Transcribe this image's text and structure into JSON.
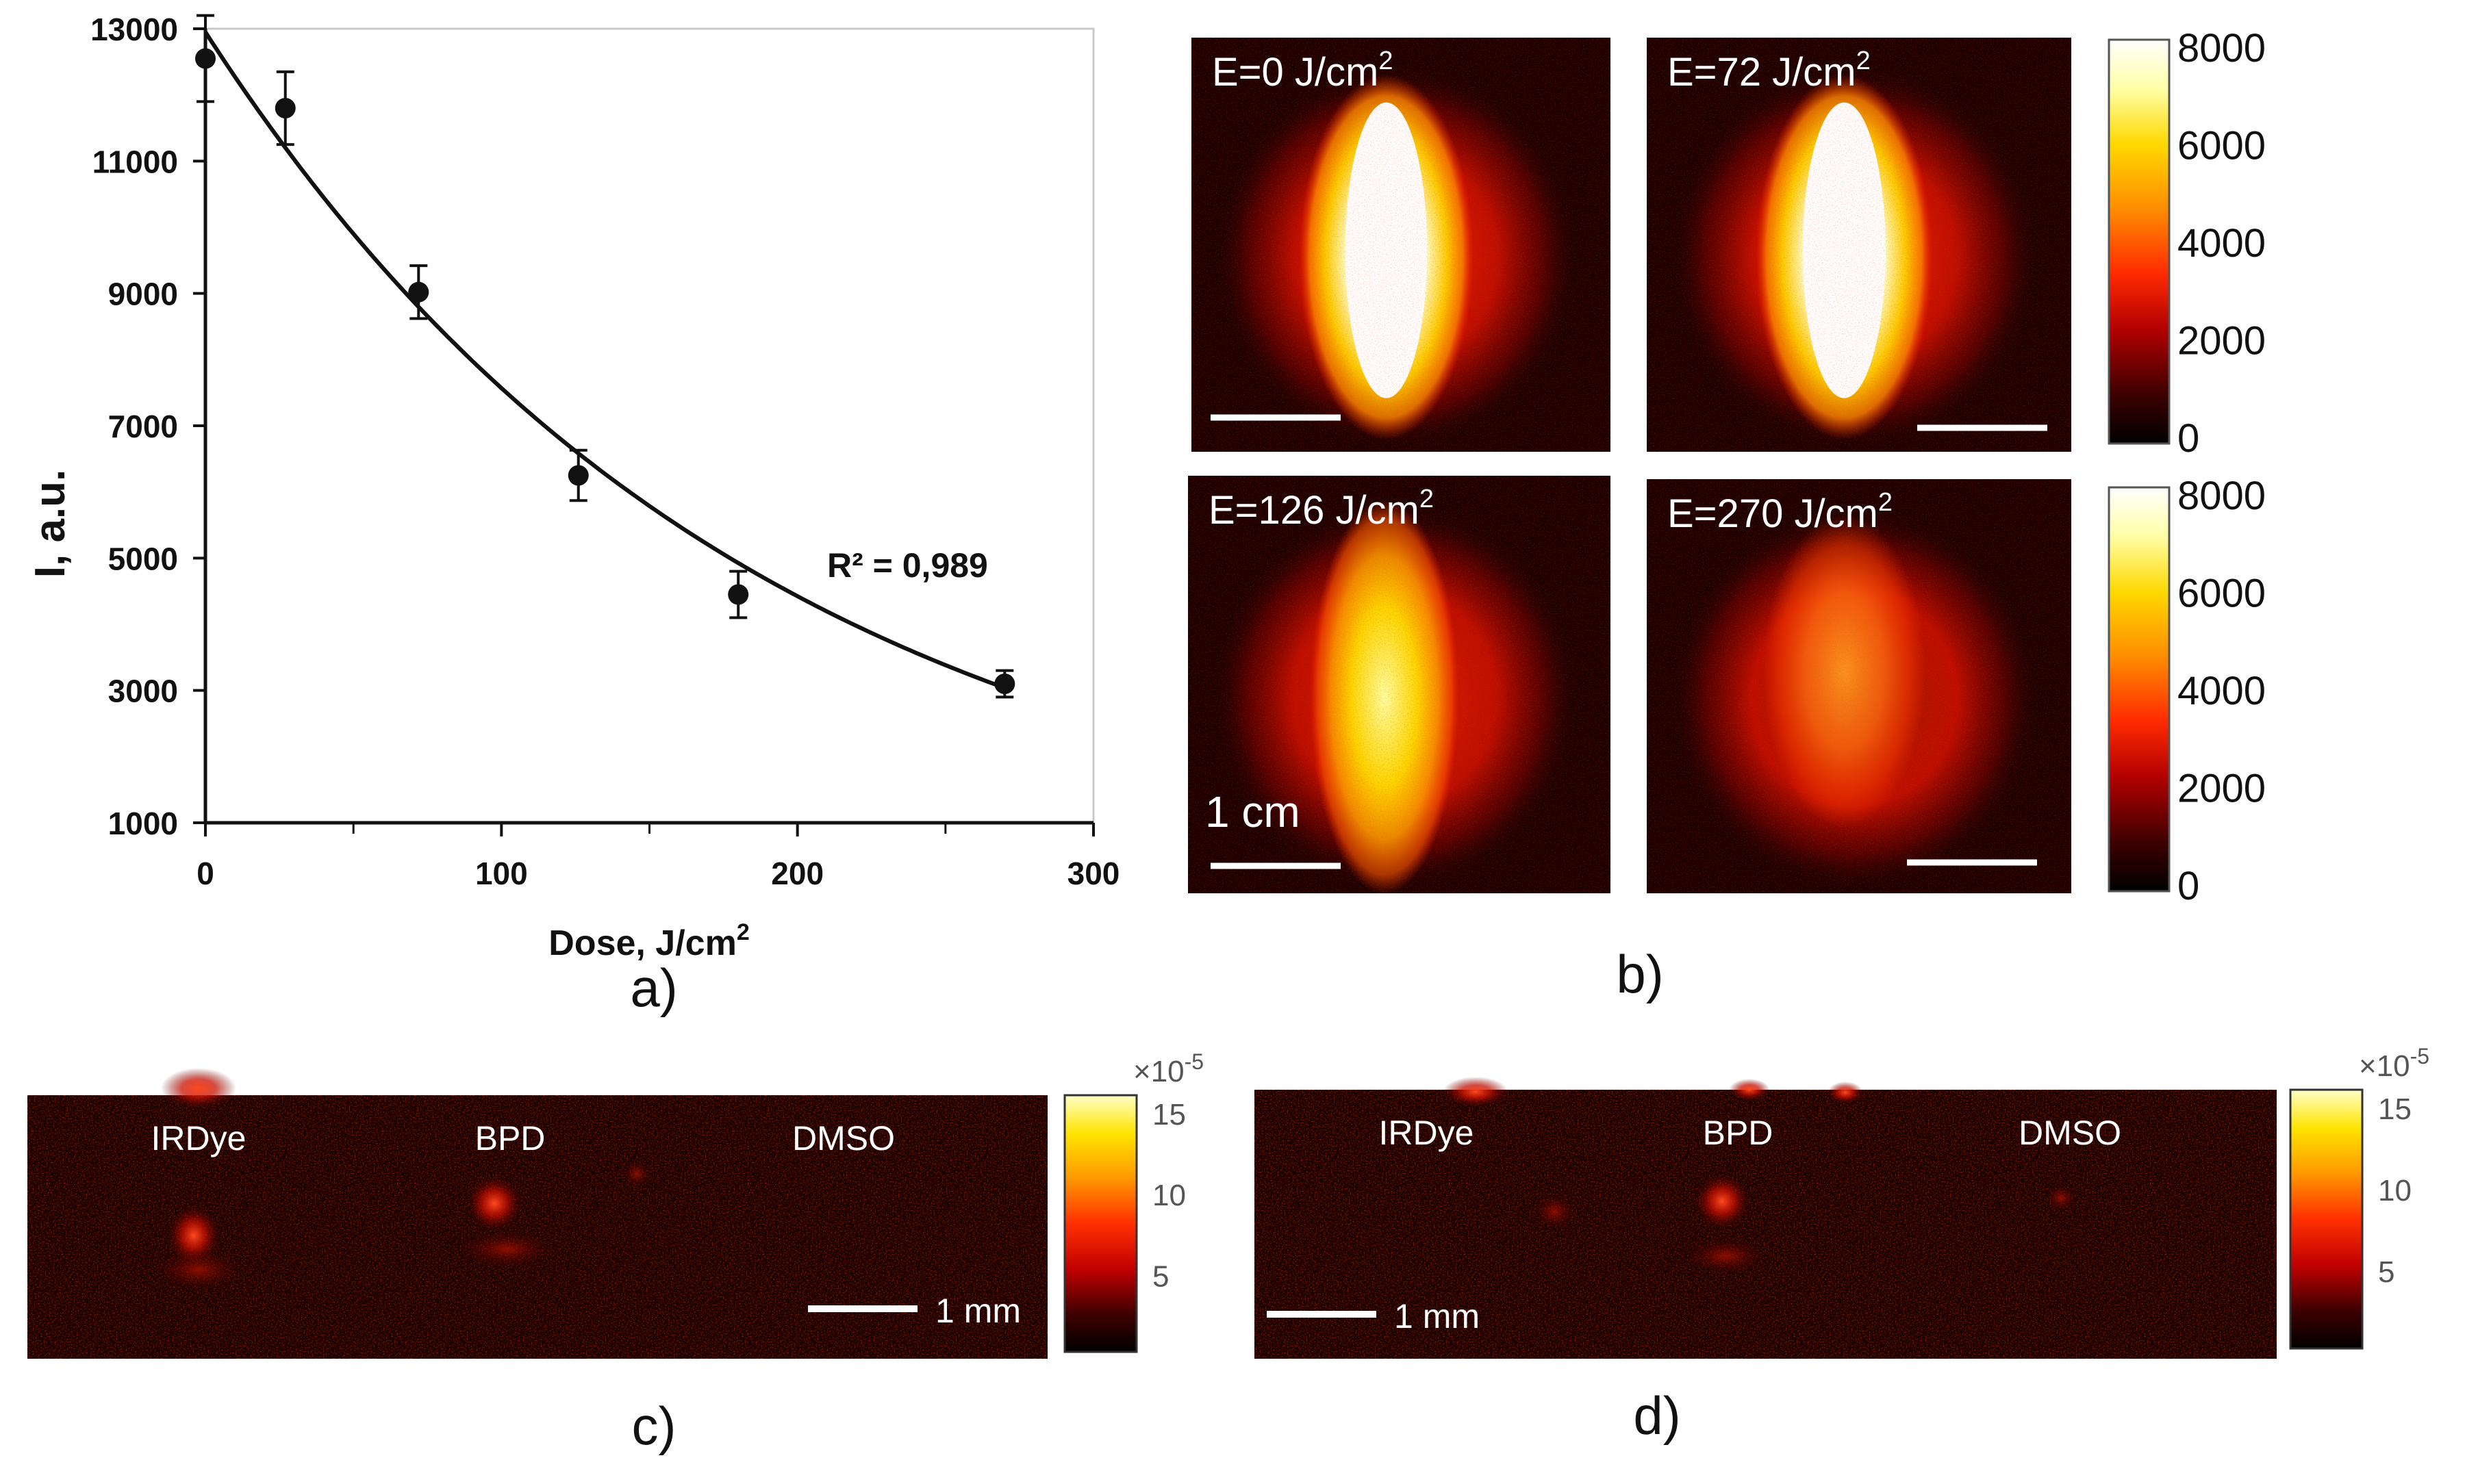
{
  "chart_data": [
    {
      "panel": "a)",
      "type": "scatter",
      "xlabel_main": "Dose, J/cm",
      "xlabel_sup": "2",
      "ylabel": "I, a.u.",
      "xlim": [
        0,
        300
      ],
      "ylim": [
        1000,
        13000
      ],
      "xticks": [
        0,
        100,
        200,
        300
      ],
      "yticks": [
        1000,
        3000,
        5000,
        7000,
        9000,
        11000,
        13000
      ],
      "points": [
        {
          "x": 0,
          "y": 12550,
          "err": 650
        },
        {
          "x": 27,
          "y": 11800,
          "err": 550
        },
        {
          "x": 72,
          "y": 9020,
          "err": 400
        },
        {
          "x": 126,
          "y": 6250,
          "err": 380
        },
        {
          "x": 180,
          "y": 4450,
          "err": 350
        },
        {
          "x": 270,
          "y": 3100,
          "err": 200
        }
      ],
      "trendline": {
        "type": "exponential",
        "a": 12950,
        "b": 0.00537
      },
      "annotation": "R² = 0,989"
    },
    {
      "panel": "b)",
      "type": "heatmap",
      "images": [
        {
          "label": "E=0  J/cm",
          "sup": "2",
          "peak": 1.0
        },
        {
          "label": "E=72  J/cm",
          "sup": "2",
          "peak": 1.0
        },
        {
          "label": "E=126  J/cm",
          "sup": "2",
          "peak": 0.82
        },
        {
          "label": "E=270  J/cm",
          "sup": "2",
          "peak": 0.52
        }
      ],
      "scale_label": "1 cm",
      "colorbar_ticks": [
        "8000",
        "6000",
        "4000",
        "2000",
        "0"
      ]
    },
    {
      "panel": "c)",
      "type": "heatmap",
      "labels": [
        "IRDye",
        "BPD",
        "DMSO"
      ],
      "scale_label": "1 mm",
      "colorbar_exponent": "×10",
      "colorbar_exponent_sup": "-5",
      "colorbar_ticks": [
        "15",
        "10",
        "5"
      ]
    },
    {
      "panel": "d)",
      "type": "heatmap",
      "labels": [
        "IRDye",
        "BPD",
        "DMSO"
      ],
      "scale_label": "1 mm",
      "colorbar_exponent": "×10",
      "colorbar_exponent_sup": "-5",
      "colorbar_ticks": [
        "15",
        "10",
        "5"
      ]
    }
  ],
  "colors": {
    "hot_stops": [
      "#000000",
      "#3c0000",
      "#b00000",
      "#ff2a00",
      "#ff8c00",
      "#ffd800",
      "#ffffa8",
      "#ffffff"
    ],
    "ink": "#111111"
  }
}
